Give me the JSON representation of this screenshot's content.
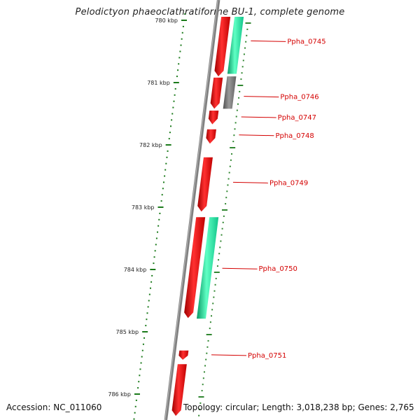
{
  "title": "Pelodictyon phaeoclathratiforme BU-1, complete genome",
  "footer": {
    "accession": "Accession: NC_011060",
    "summary": "Topology: circular; Length: 3,018,238 bp; Genes: 2,765"
  },
  "scale": {
    "ticks": [
      {
        "kbp": 780,
        "label": "780 kbp"
      },
      {
        "kbp": 781,
        "label": "781 kbp"
      },
      {
        "kbp": 782,
        "label": "782 kbp"
      },
      {
        "kbp": 783,
        "label": "783 kbp"
      },
      {
        "kbp": 784,
        "label": "784 kbp"
      },
      {
        "kbp": 785,
        "label": "785 kbp"
      },
      {
        "kbp": 786,
        "label": "786 kbp"
      }
    ]
  },
  "genes": [
    {
      "label": "",
      "start": 779.86,
      "end": 780.9,
      "strand": "-",
      "track": "cds"
    },
    {
      "label": "Ppha_0745",
      "start": 779.86,
      "end": 780.86,
      "strand": "+",
      "track": "rna"
    },
    {
      "label": "Ppha_0746",
      "start": 780.92,
      "end": 781.42,
      "strand": "-",
      "track": "cds"
    },
    {
      "label": "Ppha_0746",
      "start": 780.9,
      "end": 781.42,
      "strand": "+",
      "track": "other"
    },
    {
      "label": "Ppha_0747",
      "start": 781.45,
      "end": 781.67,
      "strand": "-",
      "track": "cds"
    },
    {
      "label": "Ppha_0748",
      "start": 781.75,
      "end": 781.98,
      "strand": "-",
      "track": "cds"
    },
    {
      "label": "Ppha_0749",
      "start": 782.2,
      "end": 783.07,
      "strand": "-",
      "track": "cds"
    },
    {
      "label": "Ppha_0750",
      "start": 783.16,
      "end": 784.78,
      "strand": "-",
      "track": "cds"
    },
    {
      "label": "Ppha_0750",
      "start": 783.16,
      "end": 784.79,
      "strand": "+",
      "track": "rna"
    },
    {
      "label": "Ppha_0751",
      "start": 785.3,
      "end": 785.45,
      "strand": "-",
      "track": "cds"
    },
    {
      "label": "",
      "start": 785.52,
      "end": 786.35,
      "strand": "-",
      "track": "cds"
    }
  ],
  "labels": [
    {
      "text": "Ppha_0745",
      "kbp": 780.33
    },
    {
      "text": "Ppha_0746",
      "kbp": 781.22
    },
    {
      "text": "Ppha_0747",
      "kbp": 781.55
    },
    {
      "text": "Ppha_0748",
      "kbp": 781.84
    },
    {
      "text": "Ppha_0749",
      "kbp": 782.6
    },
    {
      "text": "Ppha_0750",
      "kbp": 783.98
    },
    {
      "text": "Ppha_0751",
      "kbp": 785.37
    }
  ],
  "colors": {
    "cds": "#ff1010",
    "rna": "#1ee8a2",
    "other": "#707070",
    "backbone": "#808080",
    "tick": "#1a7a1a",
    "label": "#d40000"
  }
}
